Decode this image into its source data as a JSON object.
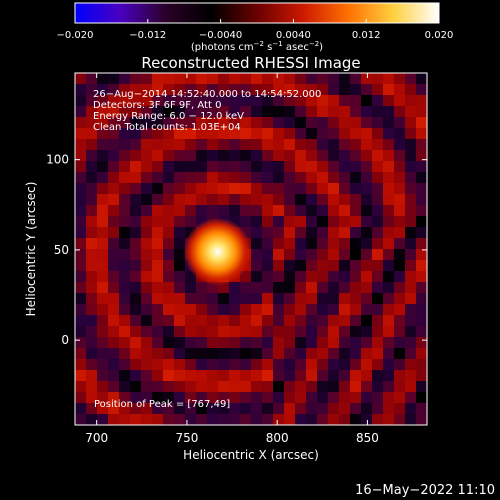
{
  "chart_data": {
    "type": "heatmap",
    "title": "Reconstructed RHESSI Image",
    "xlabel": "Heliocentric X (arcsec)",
    "ylabel": "Heliocentric Y (arcsec)",
    "xlim": [
      688,
      883
    ],
    "ylim": [
      -47,
      148
    ],
    "xticks": [
      700,
      750,
      800,
      850
    ],
    "yticks": [
      0,
      50,
      100
    ],
    "colorbar": {
      "range": [
        -0.02,
        0.02
      ],
      "ticks": [
        "−0.020",
        "−0.012",
        "−0.0040",
        "0.0040",
        "0.012",
        "0.020"
      ],
      "label_main": "(photons cm",
      "label_exp1": "−2",
      "label_mid1": " s",
      "label_exp2": "−1",
      "label_mid2": " asec",
      "label_exp3": "−2",
      "label_end": ")",
      "colors": [
        "#0000ff",
        "#4a00c0",
        "#2a0028",
        "#000000",
        "#6a0000",
        "#cc1800",
        "#ff7000",
        "#ffd040",
        "#ffffff"
      ]
    },
    "annotations": [
      "26−Aug−2014 14:52:40.000 to 14:54:52.000",
      "Detectors: 3F 6F 9F, Att 0",
      "Energy Range: 6.0 − 12.0 keV",
      "Clean    Total counts: 1.03E+04"
    ],
    "peak_label": "Position of Peak = [767,49]",
    "peak": {
      "x": 767,
      "y": 49,
      "value": 0.02
    }
  },
  "footer_date": "16−May−2022 11:10"
}
